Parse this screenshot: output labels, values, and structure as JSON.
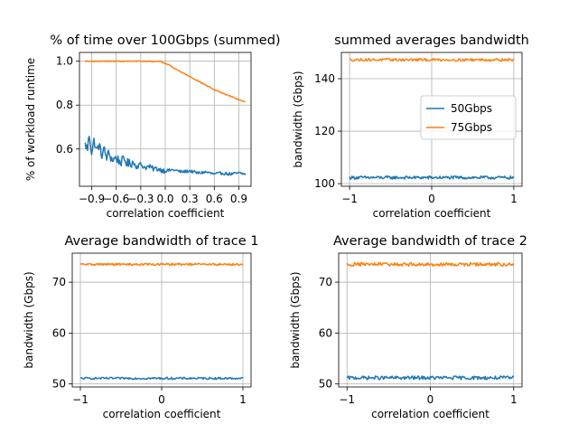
{
  "figure": {
    "series_styles": [
      {
        "name": "50Gbps",
        "color": "#1f77b4"
      },
      {
        "name": "75Gbps",
        "color": "#ff7f0e"
      }
    ]
  },
  "chart_data": [
    {
      "type": "line",
      "title": "% of time over 100Gbps (summed)",
      "xlabel": "correlation coefficient",
      "ylabel": "% of workload runtime",
      "xlim": [
        -1.05,
        1.05
      ],
      "ylim": [
        0.43,
        1.04
      ],
      "xticks": [
        -0.9,
        -0.6,
        -0.3,
        0.0,
        0.3,
        0.6,
        0.9
      ],
      "xtick_labels": [
        "−0.9",
        "−0.6",
        "−0.3",
        "0.0",
        "0.3",
        "0.6",
        "0.9"
      ],
      "yticks": [
        0.6,
        0.8,
        1.0
      ],
      "ytick_labels": [
        "0.6",
        "0.8",
        "1.0"
      ],
      "grid": true,
      "series": [
        {
          "name": "50Gbps",
          "color": "#1f77b4",
          "x": [
            -0.98,
            -0.95,
            -0.93,
            -0.9,
            -0.87,
            -0.84,
            -0.81,
            -0.78,
            -0.75,
            -0.72,
            -0.69,
            -0.65,
            -0.6,
            -0.55,
            -0.5,
            -0.45,
            -0.4,
            -0.35,
            -0.3,
            -0.25,
            -0.2,
            -0.15,
            -0.1,
            -0.05,
            0.0,
            0.1,
            0.2,
            0.3,
            0.4,
            0.5,
            0.6,
            0.7,
            0.8,
            0.9,
            0.98
          ],
          "values": [
            0.62,
            0.6,
            0.67,
            0.58,
            0.64,
            0.59,
            0.62,
            0.57,
            0.6,
            0.56,
            0.58,
            0.55,
            0.56,
            0.54,
            0.55,
            0.53,
            0.54,
            0.52,
            0.53,
            0.515,
            0.52,
            0.51,
            0.51,
            0.505,
            0.5,
            0.505,
            0.495,
            0.5,
            0.49,
            0.495,
            0.485,
            0.49,
            0.485,
            0.49,
            0.485
          ],
          "noise": 0.01
        },
        {
          "name": "75Gbps",
          "color": "#ff7f0e",
          "x": [
            -0.98,
            -0.8,
            -0.6,
            -0.4,
            -0.2,
            -0.05,
            0.0,
            0.05,
            0.1,
            0.15,
            0.2,
            0.3,
            0.4,
            0.5,
            0.6,
            0.7,
            0.8,
            0.9,
            0.98
          ],
          "values": [
            1.0,
            1.0,
            1.0,
            1.0,
            1.0,
            0.998,
            0.99,
            0.985,
            0.97,
            0.96,
            0.95,
            0.93,
            0.91,
            0.89,
            0.87,
            0.855,
            0.84,
            0.825,
            0.815
          ],
          "noise": 0.002
        }
      ]
    },
    {
      "type": "line",
      "title": "summed averages bandwidth",
      "xlabel": "correlation coefficient",
      "ylabel": "bandwidth (Gbps)",
      "xlim": [
        -1.1,
        1.1
      ],
      "ylim": [
        99,
        150
      ],
      "xticks": [
        -1,
        0,
        1
      ],
      "xtick_labels": [
        "−1",
        "0",
        "1"
      ],
      "yticks": [
        100,
        120,
        140
      ],
      "ytick_labels": [
        "100",
        "120",
        "140"
      ],
      "grid": true,
      "legend": {
        "position": "center-right",
        "entries": [
          "50Gbps",
          "75Gbps"
        ]
      },
      "series": [
        {
          "name": "50Gbps",
          "color": "#1f77b4",
          "x": [
            -1,
            1
          ],
          "values": [
            102.3,
            102.3
          ],
          "noise": 0.6
        },
        {
          "name": "75Gbps",
          "color": "#ff7f0e",
          "x": [
            -1,
            1
          ],
          "values": [
            147.2,
            147.2
          ],
          "noise": 0.5
        }
      ]
    },
    {
      "type": "line",
      "title": "Average bandwidth of trace 1",
      "xlabel": "correlation coefficient",
      "ylabel": "bandwidth (Gbps)",
      "xlim": [
        -1.1,
        1.1
      ],
      "ylim": [
        49.4,
        75.7
      ],
      "xticks": [
        -1,
        0,
        1
      ],
      "xtick_labels": [
        "−1",
        "0",
        "1"
      ],
      "yticks": [
        50,
        60,
        70
      ],
      "ytick_labels": [
        "50",
        "60",
        "70"
      ],
      "grid": true,
      "series": [
        {
          "name": "50Gbps",
          "color": "#1f77b4",
          "x": [
            -1,
            1
          ],
          "values": [
            51.1,
            51.1
          ],
          "noise": 0.2
        },
        {
          "name": "75Gbps",
          "color": "#ff7f0e",
          "x": [
            -1,
            1
          ],
          "values": [
            73.5,
            73.5
          ],
          "noise": 0.2
        }
      ]
    },
    {
      "type": "line",
      "title": "Average bandwidth of trace 2",
      "xlabel": "correlation coefficient",
      "ylabel": "bandwidth (Gbps)",
      "xlim": [
        -1.1,
        1.1
      ],
      "ylim": [
        49.4,
        75.7
      ],
      "xticks": [
        -1,
        0,
        1
      ],
      "xtick_labels": [
        "−1",
        "0",
        "1"
      ],
      "yticks": [
        50,
        60,
        70
      ],
      "ytick_labels": [
        "50",
        "60",
        "70"
      ],
      "grid": true,
      "series": [
        {
          "name": "50Gbps",
          "color": "#1f77b4",
          "x": [
            -1,
            1
          ],
          "values": [
            51.2,
            51.2
          ],
          "noise": 0.35
        },
        {
          "name": "75Gbps",
          "color": "#ff7f0e",
          "x": [
            -1,
            1
          ],
          "values": [
            73.5,
            73.5
          ],
          "noise": 0.35
        }
      ]
    }
  ]
}
